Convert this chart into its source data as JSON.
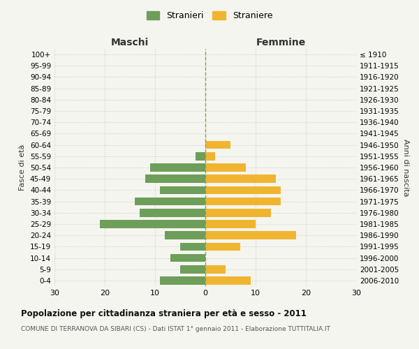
{
  "age_groups": [
    "0-4",
    "5-9",
    "10-14",
    "15-19",
    "20-24",
    "25-29",
    "30-34",
    "35-39",
    "40-44",
    "45-49",
    "50-54",
    "55-59",
    "60-64",
    "65-69",
    "70-74",
    "75-79",
    "80-84",
    "85-89",
    "90-94",
    "95-99",
    "100+"
  ],
  "birth_years": [
    "2006-2010",
    "2001-2005",
    "1996-2000",
    "1991-1995",
    "1986-1990",
    "1981-1985",
    "1976-1980",
    "1971-1975",
    "1966-1970",
    "1961-1965",
    "1956-1960",
    "1951-1955",
    "1946-1950",
    "1941-1945",
    "1936-1940",
    "1931-1935",
    "1926-1930",
    "1921-1925",
    "1916-1920",
    "1911-1915",
    "≤ 1910"
  ],
  "males": [
    9,
    5,
    7,
    5,
    8,
    21,
    13,
    14,
    9,
    12,
    11,
    2,
    0,
    0,
    0,
    0,
    0,
    0,
    0,
    0,
    0
  ],
  "females": [
    9,
    4,
    0,
    7,
    18,
    10,
    13,
    15,
    15,
    14,
    8,
    2,
    5,
    0,
    0,
    0,
    0,
    0,
    0,
    0,
    0
  ],
  "male_color": "#6d9e5a",
  "female_color": "#f0b530",
  "background_color": "#f5f5f0",
  "grid_color": "#cccccc",
  "xlim": 30,
  "title": "Popolazione per cittadinanza straniera per età e sesso - 2011",
  "subtitle": "COMUNE DI TERRANOVA DA SIBARI (CS) - Dati ISTAT 1° gennaio 2011 - Elaborazione TUTTITALIA.IT",
  "xlabel_left": "Maschi",
  "xlabel_right": "Femmine",
  "ylabel": "Fasce di età",
  "ylabel_right": "Anni di nascita",
  "legend_male": "Stranieri",
  "legend_female": "Straniere",
  "center_line_color": "#999955"
}
